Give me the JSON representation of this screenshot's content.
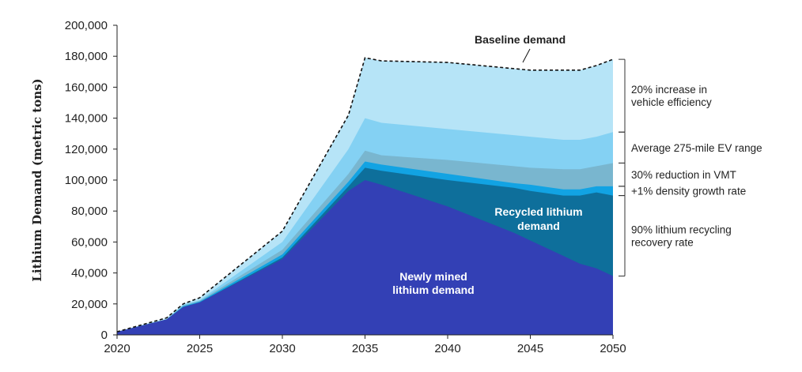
{
  "chart_data": {
    "type": "area",
    "ylabel": "Lithium Demand (metric tons)",
    "xlim": [
      2020,
      2050
    ],
    "ylim": [
      0,
      200000
    ],
    "x_ticks": [
      "2020",
      "2025",
      "2030",
      "2035",
      "2040",
      "2045",
      "2050"
    ],
    "y_ticks": [
      "0",
      "20,000",
      "40,000",
      "60,000",
      "80,000",
      "100,000",
      "120,000",
      "140,000",
      "160,000",
      "180,000",
      "200,000"
    ],
    "grid": false,
    "x": [
      2020,
      2023,
      2024,
      2025,
      2030,
      2034,
      2035,
      2036,
      2040,
      2044,
      2045,
      2047,
      2048,
      2049,
      2050
    ],
    "series": [
      {
        "name": "Newly mined lithium demand",
        "color": "#3340b5",
        "values": [
          2000,
          10000,
          18000,
          21000,
          49000,
          93000,
          100000,
          97000,
          83000,
          66000,
          61000,
          51000,
          46000,
          43000,
          38000
        ]
      },
      {
        "name": "Recycled lithium demand",
        "color": "#0e6f9b",
        "values": [
          2000,
          10000,
          18000,
          21000,
          50000,
          96000,
          108000,
          106000,
          100000,
          95000,
          93000,
          90000,
          90000,
          92000,
          90000
        ]
      },
      {
        "name": "+1% density growth rate",
        "color": "#12a3e3",
        "values": [
          2000,
          10000,
          18500,
          21500,
          52000,
          99000,
          112000,
          110000,
          104000,
          98000,
          97000,
          94000,
          94000,
          96000,
          96000
        ]
      },
      {
        "name": "30% reduction in VMT",
        "color": "#79b6cf",
        "values": [
          2000,
          10000,
          19000,
          22000,
          55000,
          104000,
          119000,
          116000,
          113000,
          109000,
          108000,
          107000,
          107000,
          109000,
          111000
        ]
      },
      {
        "name": "Average 275-mile EV range",
        "color": "#84d1f3",
        "values": [
          2000,
          10000,
          19500,
          22500,
          60000,
          120000,
          140000,
          137000,
          133000,
          129000,
          128000,
          126000,
          126000,
          128000,
          131000
        ]
      },
      {
        "name": "20% increase in vehicle efficiency",
        "color": "#b6e4f7",
        "values": [
          2000,
          11000,
          20000,
          24000,
          67000,
          142000,
          179000,
          177000,
          176000,
          172000,
          171000,
          171000,
          171000,
          174000,
          178000
        ]
      }
    ],
    "baseline": {
      "name": "Baseline demand",
      "values": [
        2000,
        11000,
        20000,
        24000,
        67000,
        142000,
        179000,
        177000,
        176000,
        172000,
        171000,
        171000,
        171000,
        174000,
        178000
      ]
    },
    "labels": {
      "baseline": "Baseline demand",
      "newly_mined": [
        "Newly mined",
        "lithium demand"
      ],
      "recycled": [
        "Recycled lithium",
        "demand"
      ]
    },
    "annotations": [
      {
        "lines": [
          "20% increase in",
          "vehicle efficiency"
        ],
        "from": 131000,
        "to": 178000
      },
      {
        "lines": [
          "Average 275-mile EV range"
        ],
        "from": 111000,
        "to": 131000
      },
      {
        "lines": [
          "30% reduction in VMT"
        ],
        "from": 96000,
        "to": 111000
      },
      {
        "lines": [
          "+1% density growth rate"
        ],
        "from": 90000,
        "to": 96000
      },
      {
        "lines": [
          "90% lithium recycling",
          "recovery rate"
        ],
        "from": 38000,
        "to": 90000
      }
    ]
  }
}
